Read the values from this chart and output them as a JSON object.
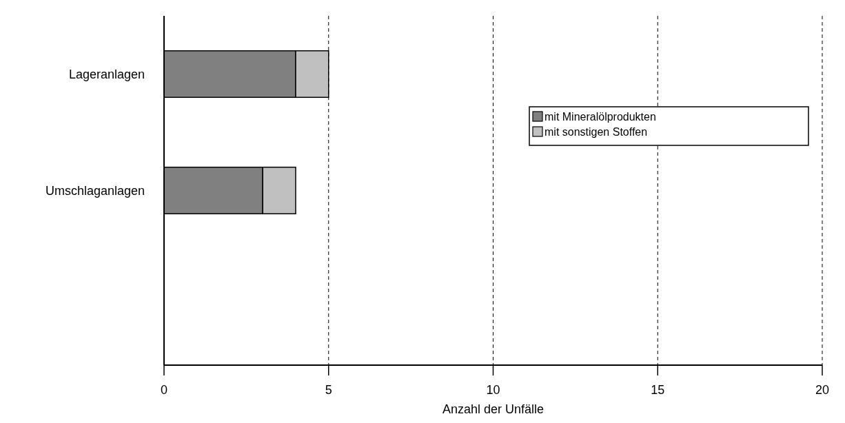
{
  "chart_data": {
    "type": "bar",
    "orientation": "horizontal",
    "stacked": true,
    "categories": [
      "Lageranlagen",
      "Umschlaganlagen",
      null
    ],
    "series": [
      {
        "name": "mit Mineralölprodukten",
        "color": "#808080",
        "values": [
          4,
          3,
          0
        ]
      },
      {
        "name": "mit sonstigen Stoffen",
        "color": "#c0c0c0",
        "values": [
          1,
          1,
          0
        ]
      }
    ],
    "xlabel": "Anzahl der Unfälle",
    "xlim": [
      0,
      20
    ],
    "xticks": [
      0,
      5,
      10,
      15,
      20
    ],
    "grid": "x",
    "legend": "right"
  }
}
